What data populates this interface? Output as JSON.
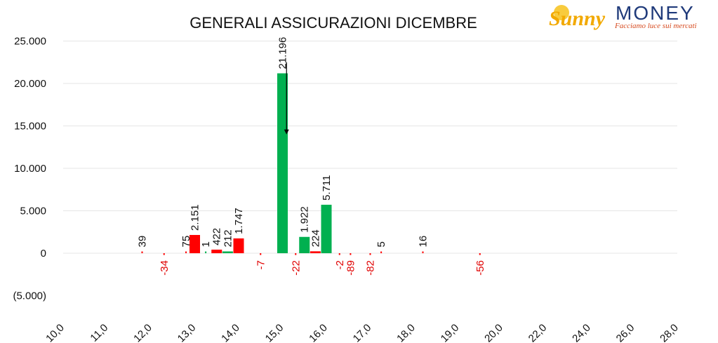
{
  "logo": {
    "brand": "Sunny",
    "name": "MONEY",
    "tagline": "Facciamo luce sui mercati"
  },
  "chart_data": {
    "type": "bar",
    "title": "GENERALI ASSICURAZIONI DICEMBRE",
    "categories": [
      "10,0",
      "11,0",
      "12,0",
      "13,0",
      "14,0",
      "15,0",
      "16,0",
      "17,0",
      "18,0",
      "19,0",
      "20,0",
      "22,0",
      "24,0",
      "26,0",
      "28,0"
    ],
    "ylim": [
      -5000,
      25000
    ],
    "yticks": [
      {
        "value": 25000,
        "label": "25.000",
        "color": "#111111"
      },
      {
        "value": 20000,
        "label": "20.000",
        "color": "#111111"
      },
      {
        "value": 15000,
        "label": "15.000",
        "color": "#111111"
      },
      {
        "value": 10000,
        "label": "10.000",
        "color": "#111111"
      },
      {
        "value": 5000,
        "label": "5.000",
        "color": "#111111"
      },
      {
        "value": 0,
        "label": "0",
        "color": "#111111"
      },
      {
        "value": -5000,
        "label": "(5.000)",
        "color": "#e00000"
      }
    ],
    "grid": true,
    "colors": {
      "positive": "#00b050",
      "negative": "#ff0000",
      "neg_label": "#e00000",
      "pos_label": "#111111"
    },
    "bars": [
      {
        "x": 11.8,
        "value": 39,
        "label": "39",
        "color": "negative",
        "label_pos": "above"
      },
      {
        "x": 12.3,
        "value": -34,
        "label": "-34",
        "color": "negative",
        "label_pos": "below"
      },
      {
        "x": 12.8,
        "value": 75,
        "label": "75",
        "color": "negative",
        "label_pos": "above"
      },
      {
        "x": 13.0,
        "value": 2151,
        "label": "2.151",
        "color": "negative",
        "label_pos": "above"
      },
      {
        "x": 13.25,
        "value": 1,
        "label": "1",
        "color": "positive",
        "label_pos": "above"
      },
      {
        "x": 13.5,
        "value": 422,
        "label": "422",
        "color": "negative",
        "label_pos": "above"
      },
      {
        "x": 13.75,
        "value": 212,
        "label": "212",
        "color": "positive",
        "label_pos": "above"
      },
      {
        "x": 14.0,
        "value": 1747,
        "label": "1.747",
        "color": "negative",
        "label_pos": "above"
      },
      {
        "x": 14.5,
        "value": -7,
        "label": "-7",
        "color": "negative",
        "label_pos": "below"
      },
      {
        "x": 15.0,
        "value": 21196,
        "label": "21.196",
        "color": "positive",
        "label_pos": "above"
      },
      {
        "x": 15.3,
        "value": -22,
        "label": "-22",
        "color": "negative",
        "label_pos": "below"
      },
      {
        "x": 15.5,
        "value": 1922,
        "label": "1.922",
        "color": "positive",
        "label_pos": "above"
      },
      {
        "x": 15.75,
        "value": 224,
        "label": "224",
        "color": "negative",
        "label_pos": "above"
      },
      {
        "x": 16.0,
        "value": 5711,
        "label": "5.711",
        "color": "positive",
        "label_pos": "above"
      },
      {
        "x": 16.3,
        "value": -2,
        "label": "-2",
        "color": "negative",
        "label_pos": "below"
      },
      {
        "x": 16.55,
        "value": -89,
        "label": "-89",
        "color": "negative",
        "label_pos": "below"
      },
      {
        "x": 17.0,
        "value": -82,
        "label": "-82",
        "color": "negative",
        "label_pos": "below"
      },
      {
        "x": 17.25,
        "value": 5,
        "label": "5",
        "color": "negative",
        "label_pos": "above"
      },
      {
        "x": 18.2,
        "value": 16,
        "label": "16",
        "color": "negative",
        "label_pos": "above"
      },
      {
        "x": 19.5,
        "value": -56,
        "label": "-56",
        "color": "negative",
        "label_pos": "below"
      }
    ],
    "annotation": {
      "type": "arrow",
      "x": 15.1,
      "from": 22500,
      "to": 14000
    }
  }
}
